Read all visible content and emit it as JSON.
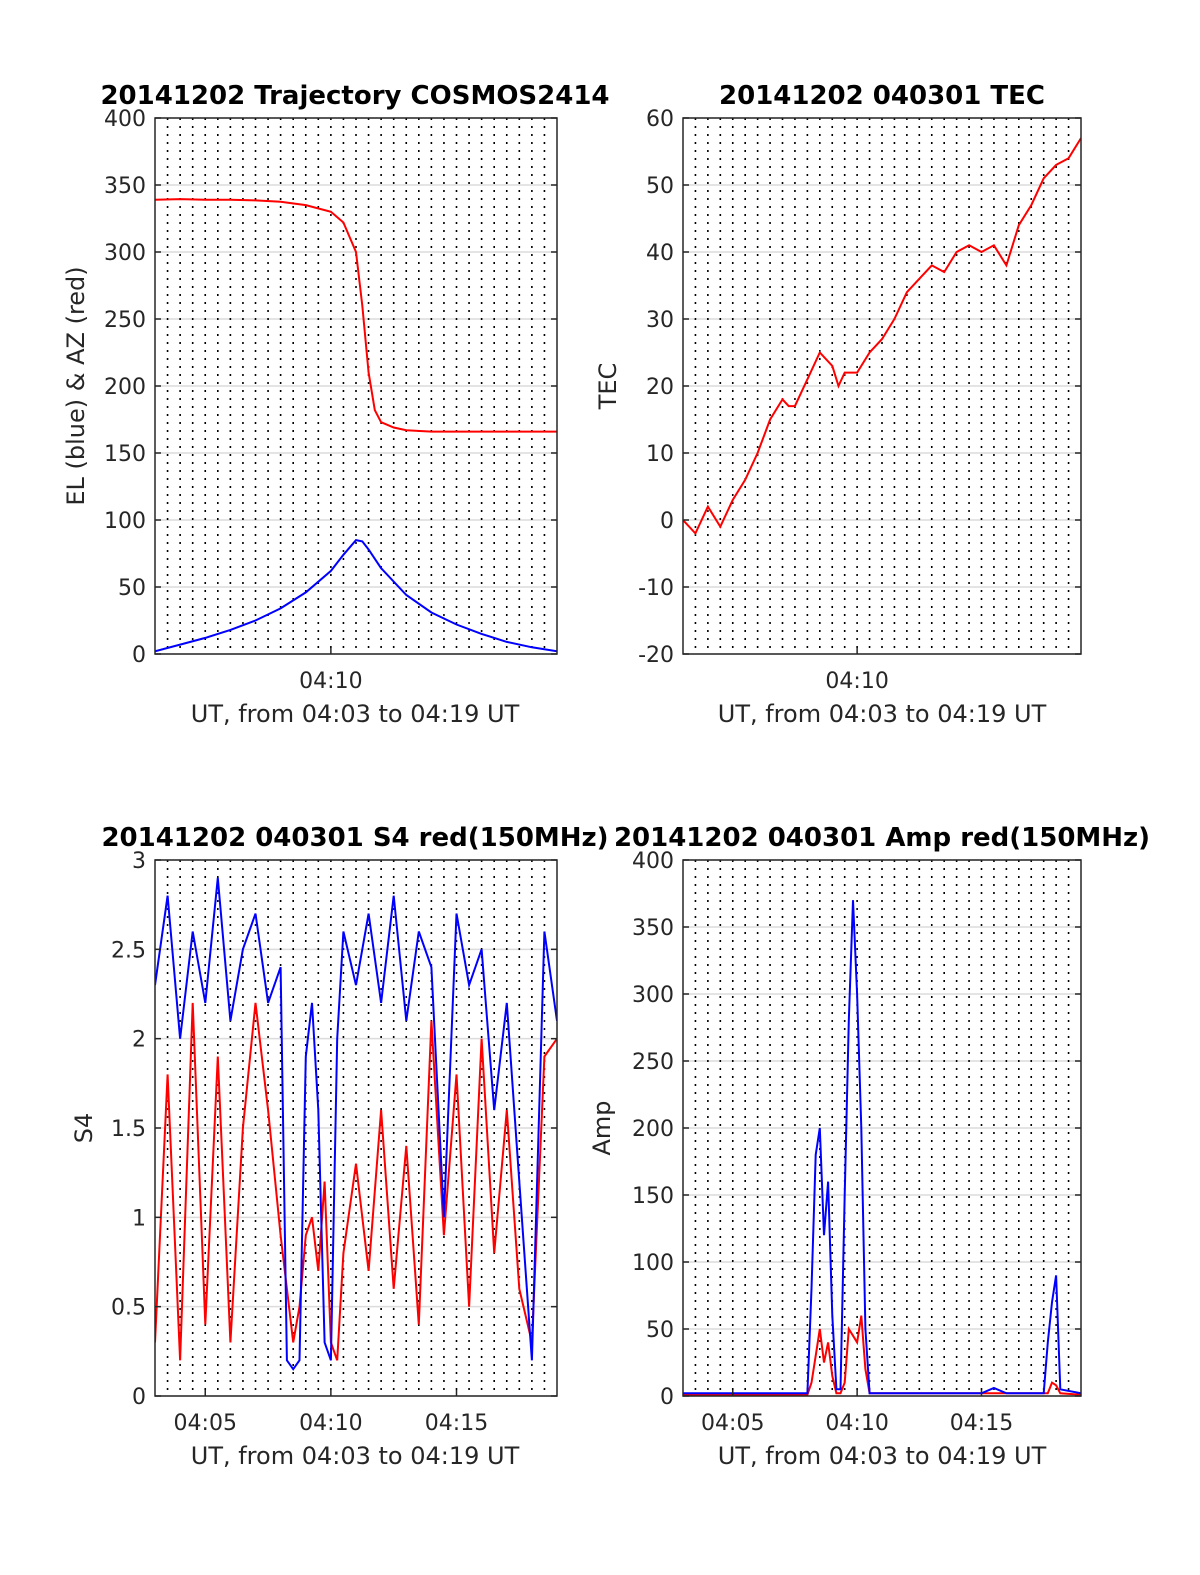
{
  "colors": {
    "red": "#ff0000",
    "blue": "#0000ff",
    "grid": "#dcdcdc",
    "axis": "#262626"
  },
  "chart_data": [
    {
      "type": "line",
      "title": "20141202 Trajectory COSMOS2414",
      "xlabel": "UT, from 04:03 to 04:19 UT",
      "ylabel": "EL (blue) & AZ (red)",
      "xlim": [
        "04:03",
        "04:19"
      ],
      "ylim": [
        0,
        400
      ],
      "yticks": [
        "0",
        "50",
        "100",
        "150",
        "200",
        "250",
        "300",
        "350",
        "400"
      ],
      "xticks": [
        {
          "at": "04:10",
          "label": "04:10"
        }
      ],
      "grid": true,
      "minor_grid_dotted": true,
      "series": [
        {
          "color": "red",
          "x": [
            "04:03",
            "04:04",
            "04:05",
            "04:06",
            "04:07",
            "04:08",
            "04:09",
            "04:10",
            "04:10:30",
            "04:11",
            "04:11:15",
            "04:11:30",
            "04:11:45",
            "04:12",
            "04:12:30",
            "04:13",
            "04:14",
            "04:15",
            "04:16",
            "04:17",
            "04:18",
            "04:19"
          ],
          "y": [
            339,
            339.5,
            339,
            339,
            338.5,
            337.5,
            335,
            330,
            322,
            300,
            260,
            210,
            182,
            173,
            169,
            167,
            166,
            166,
            166,
            166,
            166,
            166
          ]
        },
        {
          "color": "blue",
          "x": [
            "04:03",
            "04:04",
            "04:05",
            "04:06",
            "04:07",
            "04:08",
            "04:09",
            "04:10",
            "04:10:30",
            "04:11",
            "04:11:15",
            "04:11:30",
            "04:12",
            "04:13",
            "04:14",
            "04:15",
            "04:16",
            "04:17",
            "04:18",
            "04:19"
          ],
          "y": [
            2,
            7,
            12,
            18,
            25,
            34,
            46,
            62,
            74,
            85,
            84,
            78,
            64,
            44,
            31,
            22,
            15,
            9,
            5,
            2
          ]
        }
      ]
    },
    {
      "type": "line",
      "title": "20141202 040301 TEC",
      "xlabel": "UT, from 04:03 to 04:19 UT",
      "ylabel": "TEC",
      "xlim": [
        "04:03",
        "04:19"
      ],
      "ylim": [
        -20,
        60
      ],
      "yticks": [
        "-20",
        "-10",
        "0",
        "10",
        "20",
        "30",
        "40",
        "50",
        "60"
      ],
      "xticks": [
        {
          "at": "04:10",
          "label": "04:10"
        }
      ],
      "grid": true,
      "minor_grid_dotted": true,
      "series": [
        {
          "color": "red",
          "x": [
            "04:03",
            "04:03:30",
            "04:04",
            "04:04:30",
            "04:05",
            "04:05:30",
            "04:06",
            "04:06:30",
            "04:07",
            "04:07:15",
            "04:07:30",
            "04:08",
            "04:08:30",
            "04:09",
            "04:09:15",
            "04:09:30",
            "04:10",
            "04:10:30",
            "04:11",
            "04:11:30",
            "04:12",
            "04:12:30",
            "04:13",
            "04:13:30",
            "04:14",
            "04:14:30",
            "04:15",
            "04:15:30",
            "04:16",
            "04:16:30",
            "04:17",
            "04:17:30",
            "04:18",
            "04:18:30",
            "04:19"
          ],
          "y": [
            0,
            -2,
            2,
            -1,
            3,
            6,
            10,
            15,
            18,
            17,
            17,
            21,
            25,
            23,
            20,
            22,
            22,
            25,
            27,
            30,
            34,
            36,
            38,
            37,
            40,
            41,
            40,
            41,
            38,
            44,
            47,
            51,
            53,
            54,
            57
          ]
        }
      ]
    },
    {
      "type": "line",
      "title": "20141202 040301 S4 red(150MHz)",
      "xlabel": "UT, from 04:03 to 04:19 UT",
      "ylabel": "S4",
      "xlim": [
        "04:03",
        "04:19"
      ],
      "ylim": [
        0,
        3
      ],
      "yticks": [
        "0",
        "0.5",
        "1",
        "1.5",
        "2",
        "2.5",
        "3"
      ],
      "xticks": [
        {
          "at": "04:05",
          "label": "04:05"
        },
        {
          "at": "04:10",
          "label": "04:10"
        },
        {
          "at": "04:15",
          "label": "04:15"
        }
      ],
      "grid": true,
      "minor_grid_dotted": true,
      "series": [
        {
          "color": "red",
          "x": [
            "04:03",
            "04:03:30",
            "04:04",
            "04:04:30",
            "04:05",
            "04:05:30",
            "04:06",
            "04:06:30",
            "04:07",
            "04:07:30",
            "04:08",
            "04:08:15",
            "04:08:30",
            "04:08:45",
            "04:09",
            "04:09:15",
            "04:09:30",
            "04:09:45",
            "04:10",
            "04:10:15",
            "04:10:30",
            "04:11",
            "04:11:30",
            "04:12",
            "04:12:30",
            "04:13",
            "04:13:30",
            "04:14",
            "04:14:30",
            "04:15",
            "04:15:30",
            "04:16",
            "04:16:30",
            "04:17",
            "04:17:30",
            "04:18",
            "04:18:30",
            "04:19"
          ],
          "y": [
            0.3,
            1.8,
            0.2,
            2.2,
            0.4,
            1.9,
            0.3,
            1.5,
            2.2,
            1.6,
            0.9,
            0.6,
            0.3,
            0.5,
            0.9,
            1.0,
            0.7,
            1.2,
            0.3,
            0.2,
            0.8,
            1.3,
            0.7,
            1.6,
            0.6,
            1.4,
            0.4,
            2.1,
            0.9,
            1.8,
            0.5,
            2.0,
            0.8,
            1.6,
            0.6,
            0.3,
            1.9,
            2.0
          ]
        },
        {
          "color": "blue",
          "x": [
            "04:03",
            "04:03:30",
            "04:04",
            "04:04:30",
            "04:05",
            "04:05:30",
            "04:06",
            "04:06:30",
            "04:07",
            "04:07:30",
            "04:08",
            "04:08:15",
            "04:08:30",
            "04:08:45",
            "04:09",
            "04:09:15",
            "04:09:30",
            "04:09:45",
            "04:10",
            "04:10:15",
            "04:10:30",
            "04:11",
            "04:11:30",
            "04:12",
            "04:12:30",
            "04:13",
            "04:13:30",
            "04:14",
            "04:14:30",
            "04:15",
            "04:15:30",
            "04:16",
            "04:16:30",
            "04:17",
            "04:17:30",
            "04:18",
            "04:18:30",
            "04:19"
          ],
          "y": [
            2.3,
            2.8,
            2.0,
            2.6,
            2.2,
            2.9,
            2.1,
            2.5,
            2.7,
            2.2,
            2.4,
            0.2,
            0.15,
            0.2,
            1.9,
            2.2,
            1.6,
            0.3,
            0.2,
            2.0,
            2.6,
            2.3,
            2.7,
            2.2,
            2.8,
            2.1,
            2.6,
            2.4,
            1.0,
            2.7,
            2.3,
            2.5,
            1.6,
            2.2,
            1.2,
            0.2,
            2.6,
            2.1
          ]
        }
      ]
    },
    {
      "type": "line",
      "title": "20141202 040301 Amp red(150MHz)",
      "xlabel": "UT, from 04:03 to 04:19 UT",
      "ylabel": "Amp",
      "xlim": [
        "04:03",
        "04:19"
      ],
      "ylim": [
        0,
        400
      ],
      "yticks": [
        "0",
        "50",
        "100",
        "150",
        "200",
        "250",
        "300",
        "350",
        "400"
      ],
      "xticks": [
        {
          "at": "04:05",
          "label": "04:05"
        },
        {
          "at": "04:10",
          "label": "04:10"
        },
        {
          "at": "04:15",
          "label": "04:15"
        }
      ],
      "grid": true,
      "minor_grid_dotted": true,
      "series": [
        {
          "color": "red",
          "x": [
            "04:03",
            "04:08",
            "04:08:10",
            "04:08:20",
            "04:08:30",
            "04:08:40",
            "04:08:50",
            "04:09",
            "04:09:10",
            "04:09:20",
            "04:09:30",
            "04:09:40",
            "04:09:50",
            "04:10",
            "04:10:10",
            "04:10:20",
            "04:10:30",
            "04:17:40",
            "04:17:50",
            "04:18",
            "04:18:10",
            "04:19"
          ],
          "y": [
            1,
            1,
            10,
            30,
            50,
            25,
            40,
            15,
            2,
            2,
            10,
            50,
            45,
            40,
            60,
            20,
            2,
            2,
            10,
            8,
            2,
            1
          ]
        },
        {
          "color": "blue",
          "x": [
            "04:03",
            "04:05",
            "04:07",
            "04:08",
            "04:08:10",
            "04:08:20",
            "04:08:30",
            "04:08:40",
            "04:08:50",
            "04:09",
            "04:09:10",
            "04:09:20",
            "04:09:30",
            "04:09:40",
            "04:09:50",
            "04:10",
            "04:10:10",
            "04:10:20",
            "04:10:30",
            "04:11",
            "04:13",
            "04:15",
            "04:15:30",
            "04:16",
            "04:17:30",
            "04:17:40",
            "04:17:50",
            "04:18",
            "04:18:10",
            "04:19"
          ],
          "y": [
            2,
            2,
            2,
            2,
            80,
            180,
            200,
            120,
            160,
            60,
            5,
            5,
            150,
            280,
            370,
            300,
            200,
            50,
            2,
            2,
            2,
            2,
            6,
            2,
            2,
            40,
            70,
            90,
            5,
            2
          ]
        }
      ]
    }
  ]
}
